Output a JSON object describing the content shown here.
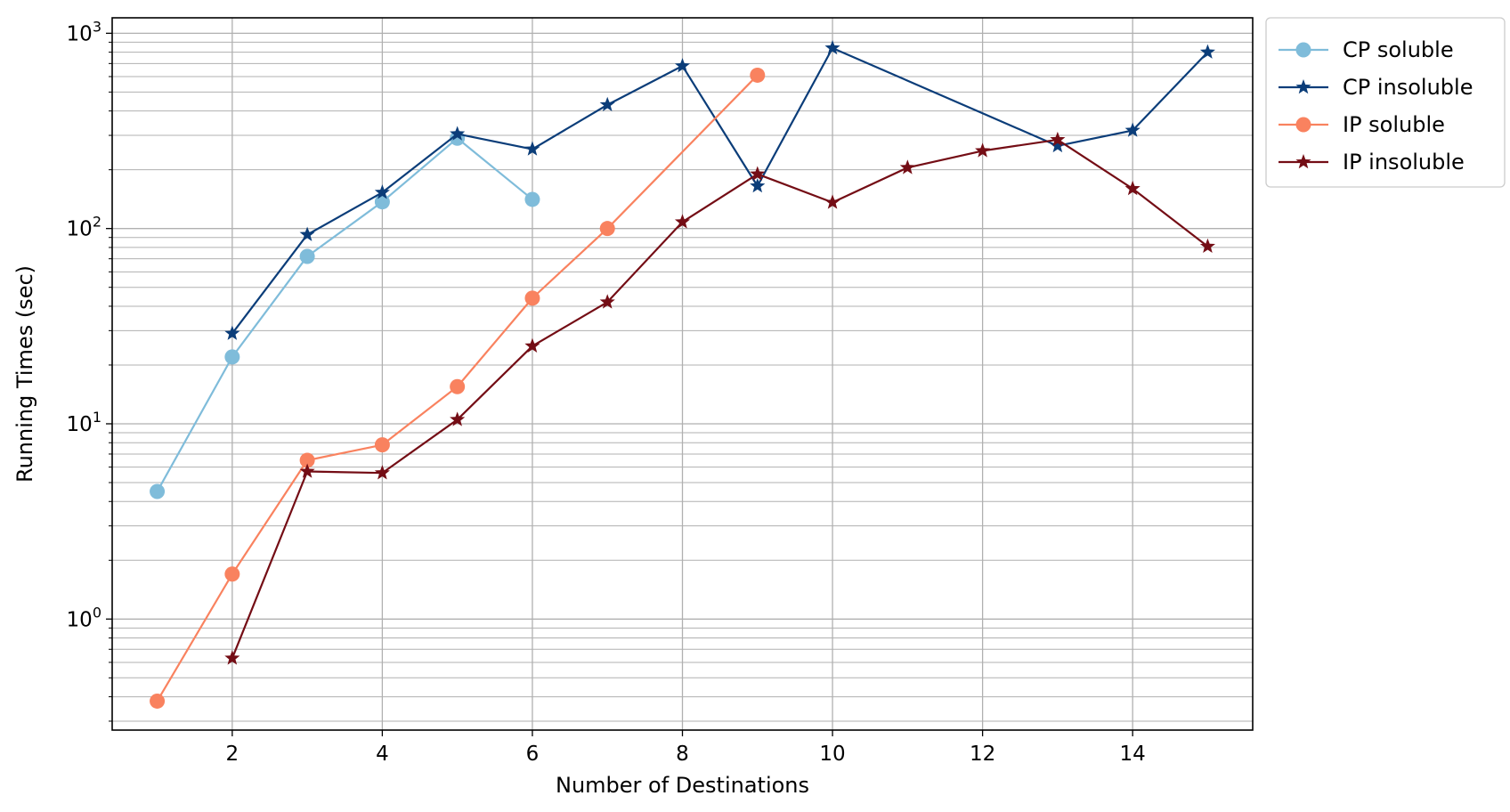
{
  "chart_data": {
    "type": "line",
    "title": "",
    "xlabel": "Number of Destinations",
    "ylabel": "Running Times (sec)",
    "xscale": "linear",
    "yscale": "log",
    "xlim": [
      0.4,
      15.6
    ],
    "ylim": [
      0.27,
      1200
    ],
    "xticks": [
      2,
      4,
      6,
      8,
      10,
      12,
      14
    ],
    "xtick_labels": [
      "2",
      "4",
      "6",
      "8",
      "10",
      "12",
      "14"
    ],
    "yticks": [
      1,
      10,
      100,
      1000
    ],
    "ytick_labels": [
      {
        "base": "10",
        "exp": "0"
      },
      {
        "base": "10",
        "exp": "1"
      },
      {
        "base": "10",
        "exp": "2"
      },
      {
        "base": "10",
        "exp": "3"
      }
    ],
    "grid": true,
    "legend_position": "outside-top-right",
    "series": [
      {
        "name": "CP soluble",
        "color": "#7fbcda",
        "marker": "circle",
        "x": [
          1,
          2,
          3,
          4,
          5,
          6
        ],
        "y": [
          4.5,
          22,
          72,
          137,
          290,
          141
        ]
      },
      {
        "name": "CP insoluble",
        "color": "#0b3d79",
        "marker": "star",
        "x": [
          2,
          3,
          4,
          5,
          6,
          7,
          8,
          9,
          10,
          13,
          14,
          15
        ],
        "y": [
          29,
          93,
          153,
          305,
          255,
          430,
          680,
          165,
          840,
          265,
          318,
          800
        ]
      },
      {
        "name": "IP soluble",
        "color": "#f9825f",
        "marker": "circle",
        "x": [
          1,
          2,
          3,
          4,
          5,
          6,
          7,
          9
        ],
        "y": [
          0.38,
          1.7,
          6.5,
          7.8,
          15.5,
          44,
          100,
          610
        ]
      },
      {
        "name": "IP insoluble",
        "color": "#740d15",
        "marker": "star",
        "x": [
          2,
          3,
          4,
          5,
          6,
          7,
          8,
          9,
          10,
          11,
          12,
          13,
          14,
          15
        ],
        "y": [
          0.63,
          5.7,
          5.6,
          10.5,
          25,
          42,
          108,
          190,
          136,
          205,
          250,
          285,
          160,
          81
        ]
      }
    ]
  }
}
